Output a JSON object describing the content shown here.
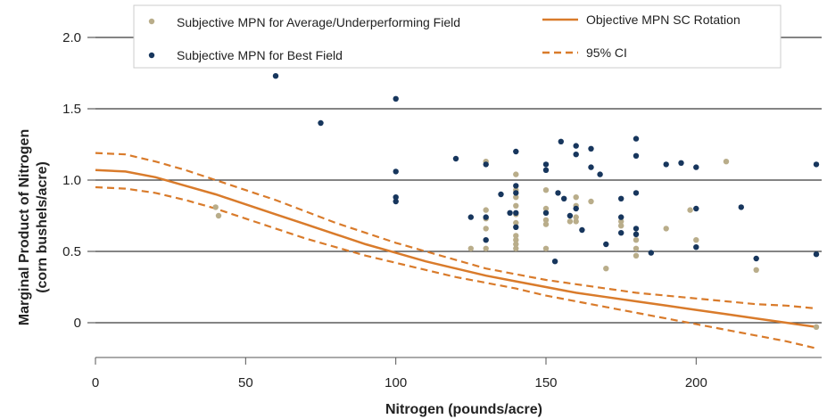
{
  "chart_data": {
    "type": "scatter",
    "xlabel": "Nitrogen (pounds/acre)",
    "ylabel_line1": "Marginal Product of Nitrogen",
    "ylabel_line2": "(corn bushels/acre)",
    "xlim": [
      0,
      240
    ],
    "ylim": [
      -0.25,
      2.0
    ],
    "x_ticks": [
      0,
      50,
      100,
      150,
      200
    ],
    "x_tick_labels": [
      "0",
      "50",
      "100",
      "150",
      "200"
    ],
    "y_ticks": [
      0,
      0.5,
      1.0,
      1.5,
      2.0
    ],
    "y_tick_labels": [
      "0",
      "0.5",
      "1.0",
      "1.5",
      "2.0"
    ],
    "grid": "horizontal",
    "legend_placement": "top",
    "series": [
      {
        "name": "Subjective MPN for Average/Underperforming Field",
        "kind": "scatter",
        "color": "#b9ad8a",
        "points": [
          [
            40,
            0.81
          ],
          [
            41,
            0.75
          ],
          [
            125,
            0.52
          ],
          [
            130,
            1.13
          ],
          [
            130,
            0.79
          ],
          [
            130,
            0.73
          ],
          [
            130,
            0.66
          ],
          [
            130,
            0.52
          ],
          [
            140,
            1.04
          ],
          [
            140,
            0.93
          ],
          [
            140,
            0.88
          ],
          [
            140,
            0.82
          ],
          [
            140,
            0.76
          ],
          [
            140,
            0.7
          ],
          [
            140,
            0.61
          ],
          [
            140,
            0.58
          ],
          [
            140,
            0.55
          ],
          [
            140,
            0.52
          ],
          [
            150,
            0.93
          ],
          [
            150,
            0.8
          ],
          [
            150,
            0.72
          ],
          [
            150,
            0.69
          ],
          [
            150,
            0.52
          ],
          [
            158,
            0.71
          ],
          [
            160,
            0.88
          ],
          [
            160,
            0.82
          ],
          [
            160,
            0.74
          ],
          [
            160,
            0.71
          ],
          [
            165,
            0.85
          ],
          [
            170,
            0.38
          ],
          [
            175,
            0.68
          ],
          [
            175,
            0.71
          ],
          [
            180,
            0.58
          ],
          [
            180,
            0.52
          ],
          [
            180,
            0.47
          ],
          [
            180,
            0.62
          ],
          [
            190,
            0.66
          ],
          [
            198,
            0.79
          ],
          [
            200,
            0.58
          ],
          [
            210,
            1.13
          ],
          [
            220,
            0.37
          ],
          [
            240,
            -0.03
          ]
        ]
      },
      {
        "name": "Subjective MPN for Best Field",
        "kind": "scatter",
        "color": "#17365d",
        "points": [
          [
            60,
            1.73
          ],
          [
            75,
            1.4
          ],
          [
            100,
            1.57
          ],
          [
            100,
            1.06
          ],
          [
            100,
            0.88
          ],
          [
            100,
            0.85
          ],
          [
            120,
            1.15
          ],
          [
            125,
            0.74
          ],
          [
            130,
            1.11
          ],
          [
            130,
            0.74
          ],
          [
            130,
            0.58
          ],
          [
            135,
            0.9
          ],
          [
            138,
            0.77
          ],
          [
            140,
            1.2
          ],
          [
            140,
            0.96
          ],
          [
            140,
            0.91
          ],
          [
            140,
            0.77
          ],
          [
            140,
            0.67
          ],
          [
            150,
            1.11
          ],
          [
            150,
            1.07
          ],
          [
            150,
            0.77
          ],
          [
            153,
            0.43
          ],
          [
            154,
            0.91
          ],
          [
            155,
            1.27
          ],
          [
            156,
            0.87
          ],
          [
            158,
            0.75
          ],
          [
            160,
            1.24
          ],
          [
            160,
            1.18
          ],
          [
            160,
            0.8
          ],
          [
            162,
            0.65
          ],
          [
            165,
            1.22
          ],
          [
            165,
            1.09
          ],
          [
            168,
            1.04
          ],
          [
            170,
            0.55
          ],
          [
            175,
            0.87
          ],
          [
            175,
            0.74
          ],
          [
            175,
            0.63
          ],
          [
            180,
            1.29
          ],
          [
            180,
            1.17
          ],
          [
            180,
            0.91
          ],
          [
            180,
            0.66
          ],
          [
            180,
            0.62
          ],
          [
            185,
            0.49
          ],
          [
            190,
            1.11
          ],
          [
            195,
            1.12
          ],
          [
            200,
            1.09
          ],
          [
            200,
            0.8
          ],
          [
            200,
            0.53
          ],
          [
            215,
            0.81
          ],
          [
            220,
            0.45
          ],
          [
            240,
            1.11
          ],
          [
            240,
            0.48
          ]
        ]
      },
      {
        "name": "Objective MPN SC Rotation",
        "kind": "line",
        "color": "#d97b2b",
        "points": [
          [
            0,
            1.07
          ],
          [
            10,
            1.06
          ],
          [
            20,
            1.02
          ],
          [
            30,
            0.96
          ],
          [
            40,
            0.9
          ],
          [
            50,
            0.83
          ],
          [
            60,
            0.76
          ],
          [
            70,
            0.69
          ],
          [
            80,
            0.62
          ],
          [
            90,
            0.55
          ],
          [
            100,
            0.49
          ],
          [
            110,
            0.43
          ],
          [
            120,
            0.38
          ],
          [
            130,
            0.33
          ],
          [
            140,
            0.29
          ],
          [
            150,
            0.25
          ],
          [
            160,
            0.21
          ],
          [
            170,
            0.18
          ],
          [
            180,
            0.15
          ],
          [
            190,
            0.12
          ],
          [
            200,
            0.09
          ],
          [
            210,
            0.06
          ],
          [
            220,
            0.03
          ],
          [
            230,
            0.0
          ],
          [
            240,
            -0.03
          ]
        ]
      },
      {
        "name": "95% CI",
        "kind": "dashed",
        "color": "#d97b2b",
        "upper": [
          [
            0,
            1.19
          ],
          [
            10,
            1.18
          ],
          [
            20,
            1.13
          ],
          [
            30,
            1.07
          ],
          [
            40,
            1.0
          ],
          [
            50,
            0.93
          ],
          [
            60,
            0.86
          ],
          [
            70,
            0.78
          ],
          [
            80,
            0.7
          ],
          [
            90,
            0.63
          ],
          [
            100,
            0.56
          ],
          [
            110,
            0.5
          ],
          [
            120,
            0.44
          ],
          [
            130,
            0.38
          ],
          [
            140,
            0.34
          ],
          [
            150,
            0.3
          ],
          [
            160,
            0.27
          ],
          [
            170,
            0.24
          ],
          [
            180,
            0.21
          ],
          [
            190,
            0.19
          ],
          [
            200,
            0.17
          ],
          [
            210,
            0.15
          ],
          [
            220,
            0.13
          ],
          [
            230,
            0.12
          ],
          [
            240,
            0.1
          ]
        ],
        "lower": [
          [
            0,
            0.95
          ],
          [
            10,
            0.94
          ],
          [
            20,
            0.91
          ],
          [
            30,
            0.86
          ],
          [
            40,
            0.8
          ],
          [
            50,
            0.73
          ],
          [
            60,
            0.66
          ],
          [
            70,
            0.59
          ],
          [
            80,
            0.53
          ],
          [
            90,
            0.47
          ],
          [
            100,
            0.42
          ],
          [
            110,
            0.37
          ],
          [
            120,
            0.32
          ],
          [
            130,
            0.28
          ],
          [
            140,
            0.24
          ],
          [
            150,
            0.19
          ],
          [
            160,
            0.15
          ],
          [
            170,
            0.11
          ],
          [
            180,
            0.07
          ],
          [
            190,
            0.03
          ],
          [
            200,
            -0.01
          ],
          [
            210,
            -0.05
          ],
          [
            220,
            -0.09
          ],
          [
            230,
            -0.13
          ],
          [
            240,
            -0.18
          ]
        ]
      }
    ]
  }
}
